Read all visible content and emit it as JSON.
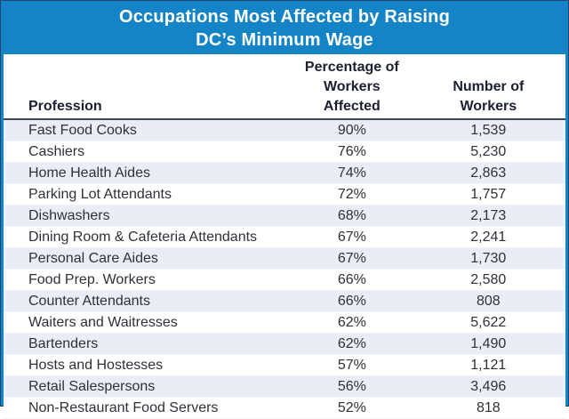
{
  "title": {
    "line1": "Occupations Most Affected by Raising",
    "line2": "DC’s Minimum Wage"
  },
  "colors": {
    "brand_blue": "#1484c7",
    "dark_outline": "#1c4670",
    "row_tint": "#e9eef6",
    "header_text": "#1b2030",
    "body_text": "#2d3138"
  },
  "chart_data": {
    "type": "table",
    "title": "Occupations Most Affected by Raising DC’s Minimum Wage",
    "columns": {
      "profession": "Profession",
      "percentage_lines": [
        "Percentage of",
        "Workers",
        "Affected"
      ],
      "number_lines": [
        "Number of",
        "Workers"
      ]
    },
    "rows": [
      {
        "profession": "Fast Food Cooks",
        "percentage": "90%",
        "number": "1,539"
      },
      {
        "profession": "Cashiers",
        "percentage": "76%",
        "number": "5,230"
      },
      {
        "profession": "Home Health Aides",
        "percentage": "74%",
        "number": "2,863"
      },
      {
        "profession": "Parking Lot Attendants",
        "percentage": "72%",
        "number": "1,757"
      },
      {
        "profession": "Dishwashers",
        "percentage": "68%",
        "number": "2,173"
      },
      {
        "profession": "Dining Room & Cafeteria Attendants",
        "percentage": "67%",
        "number": "2,241"
      },
      {
        "profession": "Personal Care Aides",
        "percentage": "67%",
        "number": "1,730"
      },
      {
        "profession": "Food Prep. Workers",
        "percentage": "66%",
        "number": "2,580"
      },
      {
        "profession": "Counter Attendants",
        "percentage": "66%",
        "number": "808"
      },
      {
        "profession": "Waiters and Waitresses",
        "percentage": "62%",
        "number": "5,622"
      },
      {
        "profession": "Bartenders",
        "percentage": "62%",
        "number": "1,490"
      },
      {
        "profession": "Hosts and Hostesses",
        "percentage": "57%",
        "number": "1,121"
      },
      {
        "profession": "Retail Salespersons",
        "percentage": "56%",
        "number": "3,496"
      },
      {
        "profession": "Non-Restaurant Food Servers",
        "percentage": "52%",
        "number": "818"
      }
    ]
  }
}
